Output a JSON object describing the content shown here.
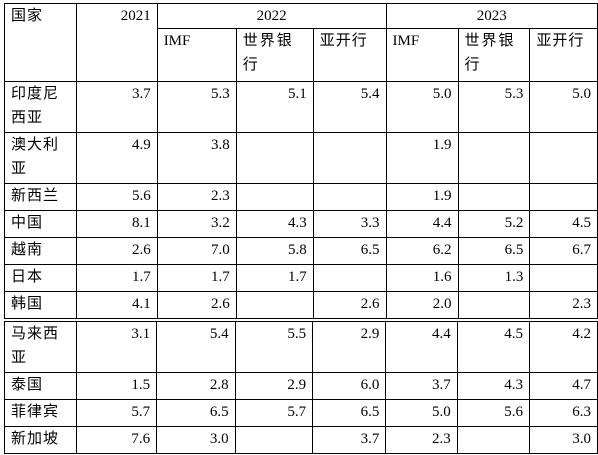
{
  "header": {
    "country_label": "国家",
    "year_2021": "2021",
    "year_2022": "2022",
    "year_2023": "2023",
    "sources_2022": [
      "IMF",
      "世界银行",
      "亚开行"
    ],
    "sources_2023": [
      "IMF",
      "世界银行",
      "亚开行"
    ]
  },
  "table1": {
    "rows": [
      {
        "country": "印度尼西亚",
        "y2021": "3.7",
        "imf2022": "5.3",
        "wb2022": "5.1",
        "adb2022": "5.4",
        "imf2023": "5.0",
        "wb2023": "5.3",
        "adb2023": "5.0"
      },
      {
        "country": "澳大利亚",
        "y2021": "4.9",
        "imf2022": "3.8",
        "wb2022": "",
        "adb2022": "",
        "imf2023": "1.9",
        "wb2023": "",
        "adb2023": ""
      },
      {
        "country": "新西兰",
        "y2021": "5.6",
        "imf2022": "2.3",
        "wb2022": "",
        "adb2022": "",
        "imf2023": "1.9",
        "wb2023": "",
        "adb2023": ""
      },
      {
        "country": "中国",
        "y2021": "8.1",
        "imf2022": "3.2",
        "wb2022": "4.3",
        "adb2022": "3.3",
        "imf2023": "4.4",
        "wb2023": "5.2",
        "adb2023": "4.5"
      },
      {
        "country": "越南",
        "y2021": "2.6",
        "imf2022": "7.0",
        "wb2022": "5.8",
        "adb2022": "6.5",
        "imf2023": "6.2",
        "wb2023": "6.5",
        "adb2023": "6.7"
      },
      {
        "country": "日本",
        "y2021": "1.7",
        "imf2022": "1.7",
        "wb2022": "1.7",
        "adb2022": "",
        "imf2023": "1.6",
        "wb2023": "1.3",
        "adb2023": ""
      },
      {
        "country": "韩国",
        "y2021": "4.1",
        "imf2022": "2.6",
        "wb2022": "",
        "adb2022": "2.6",
        "imf2023": "2.0",
        "wb2023": "",
        "adb2023": "2.3"
      }
    ]
  },
  "table2": {
    "rows": [
      {
        "country": "马来西亚",
        "y2021": "3.1",
        "imf2022": "5.4",
        "wb2022": "5.5",
        "adb2022": "2.9",
        "imf2023": "4.4",
        "wb2023": "4.5",
        "adb2023": "4.2"
      },
      {
        "country": "泰国",
        "y2021": "1.5",
        "imf2022": "2.8",
        "wb2022": "2.9",
        "adb2022": "6.0",
        "imf2023": "3.7",
        "wb2023": "4.3",
        "adb2023": "4.7"
      },
      {
        "country": "菲律宾",
        "y2021": "5.7",
        "imf2022": "6.5",
        "wb2022": "5.7",
        "adb2022": "6.5",
        "imf2023": "5.0",
        "wb2023": "5.6",
        "adb2023": "6.3"
      },
      {
        "country": "新加坡",
        "y2021": "7.6",
        "imf2022": "3.0",
        "wb2022": "",
        "adb2022": "3.7",
        "imf2023": "2.3",
        "wb2023": "",
        "adb2023": "3.0"
      }
    ]
  }
}
